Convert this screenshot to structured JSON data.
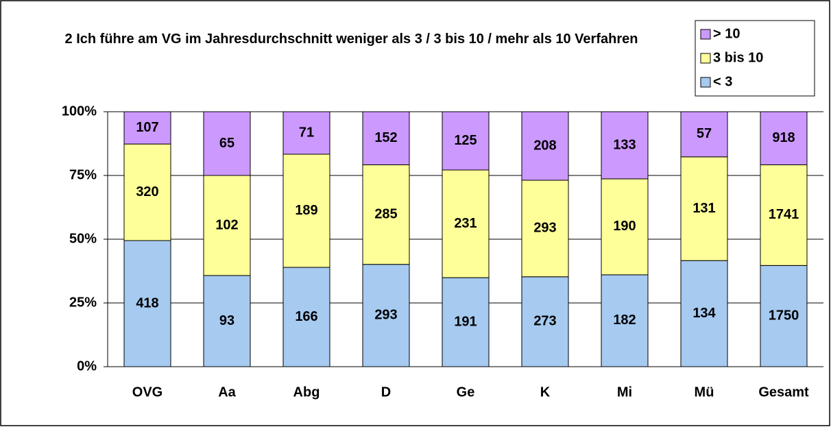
{
  "chart_data": {
    "type": "bar",
    "stacking": "percent",
    "title": "2 Ich führe am VG im Jahresdurchschnitt weniger als 3 / 3 bis 10 / mehr als 10 Verfahren",
    "categories": [
      "OVG",
      "Aa",
      "Abg",
      "D",
      "Ge",
      "K",
      "Mi",
      "Mü",
      "Gesamt"
    ],
    "series": [
      {
        "name": "< 3",
        "color": "#a6caf0",
        "values": [
          418,
          93,
          166,
          293,
          191,
          273,
          182,
          134,
          1750
        ]
      },
      {
        "name": "3 bis 10",
        "color": "#ffff99",
        "values": [
          320,
          102,
          189,
          285,
          231,
          293,
          190,
          131,
          1741
        ]
      },
      {
        "name": "> 10",
        "color": "#cc99ff",
        "values": [
          107,
          65,
          71,
          152,
          125,
          208,
          133,
          57,
          918
        ]
      }
    ],
    "ylim": [
      0,
      100
    ],
    "yticks": [
      {
        "value": 0,
        "label": "0%"
      },
      {
        "value": 25,
        "label": "25%"
      },
      {
        "value": 50,
        "label": "50%"
      },
      {
        "value": 75,
        "label": "75%"
      },
      {
        "value": 100,
        "label": "100%"
      }
    ],
    "grid": true,
    "legend": "top-right"
  }
}
